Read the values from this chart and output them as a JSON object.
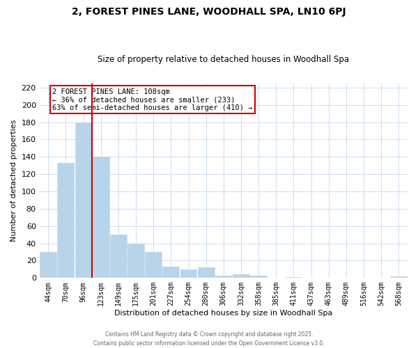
{
  "title1": "2, FOREST PINES LANE, WOODHALL SPA, LN10 6PJ",
  "title2": "Size of property relative to detached houses in Woodhall Spa",
  "xlabel": "Distribution of detached houses by size in Woodhall Spa",
  "ylabel": "Number of detached properties",
  "bar_labels": [
    "44sqm",
    "70sqm",
    "96sqm",
    "123sqm",
    "149sqm",
    "175sqm",
    "201sqm",
    "227sqm",
    "254sqm",
    "280sqm",
    "306sqm",
    "332sqm",
    "358sqm",
    "385sqm",
    "411sqm",
    "437sqm",
    "463sqm",
    "489sqm",
    "516sqm",
    "542sqm",
    "568sqm"
  ],
  "bar_values": [
    30,
    133,
    180,
    140,
    50,
    40,
    30,
    13,
    10,
    12,
    3,
    4,
    3,
    0,
    1,
    0,
    0,
    0,
    0,
    0,
    2
  ],
  "bar_color": "#b8d4ea",
  "bar_edge_color": "#b8d4ea",
  "vline_x_index": 2,
  "vline_color": "#cc0000",
  "annotation_title": "2 FOREST PINES LANE: 108sqm",
  "annotation_line1": "← 36% of detached houses are smaller (233)",
  "annotation_line2": "63% of semi-detached houses are larger (410) →",
  "annotation_box_color": "#ffffff",
  "annotation_box_edge": "#cc0000",
  "footer1": "Contains HM Land Registry data © Crown copyright and database right 2025.",
  "footer2": "Contains public sector information licensed under the Open Government Licence v3.0.",
  "background_color": "#ffffff",
  "grid_color": "#ccddf0",
  "ylim": [
    0,
    225
  ],
  "yticks": [
    0,
    20,
    40,
    60,
    80,
    100,
    120,
    140,
    160,
    180,
    200,
    220
  ]
}
